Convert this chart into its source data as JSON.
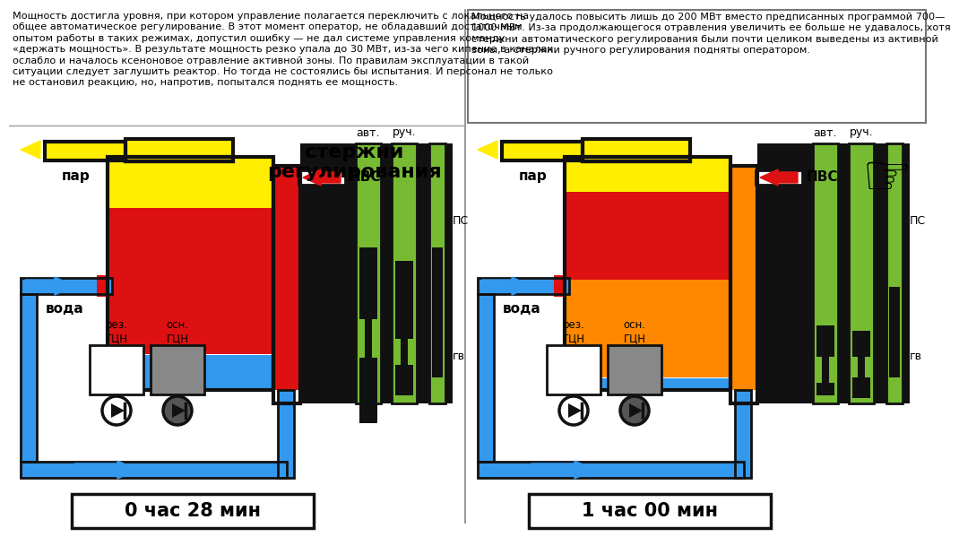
{
  "bg_color": "#ffffff",
  "left_text": "Мощность достигла уровня, при котором управление полагается переключить с локального на\nобщее автоматическое регулирование. В этот момент оператор, не обладавший достаточным\nопытом работы в таких режимах, допустил ошибку — не дал системе управления команду\n«держать мощность». В результате мощность резко упала до 30 МВт, из-за чего кипение в каналах\nослабло и началось ксеноновое отравление активной зоны. По правилам эксплуатации в такой\nситуации следует заглушить реактор. Но тогда не состоялись бы испытания. И персонал не только\nне остановил реакцию, но, напротив, попытался поднять ее мощность.",
  "right_text": "Мощность удалось повысить лишь до 200 МВт вместо предписанных программой 700—\n1000 МВт. Из-за продолжающегося отравления увеличить ее больше не удавалось, хотя\nстержни автоматического регулирования были почти целиком выведены из активной\nзоны, а стержни ручного регулирования подняты оператором.",
  "left_time": "0 час 28 мин",
  "right_time": "1 час 00 мин",
  "rod_title_1": "стержни",
  "rod_title_2": "регулирования",
  "par": "пар",
  "voda": "вода",
  "pvs": "ПВС",
  "rez_gcn": "рез.\nГЦН",
  "osn_gcn": "осн.\nГЦН",
  "avt": "авт.",
  "ruch": "руч.",
  "ps": "ПС",
  "gv": "гв",
  "blue": "#3399ee",
  "red": "#dd1111",
  "yellow": "#ffee00",
  "orange": "#ff8800",
  "green": "#77bb33",
  "black": "#111111",
  "white": "#ffffff",
  "gray": "#888888",
  "dark_gray": "#555555"
}
